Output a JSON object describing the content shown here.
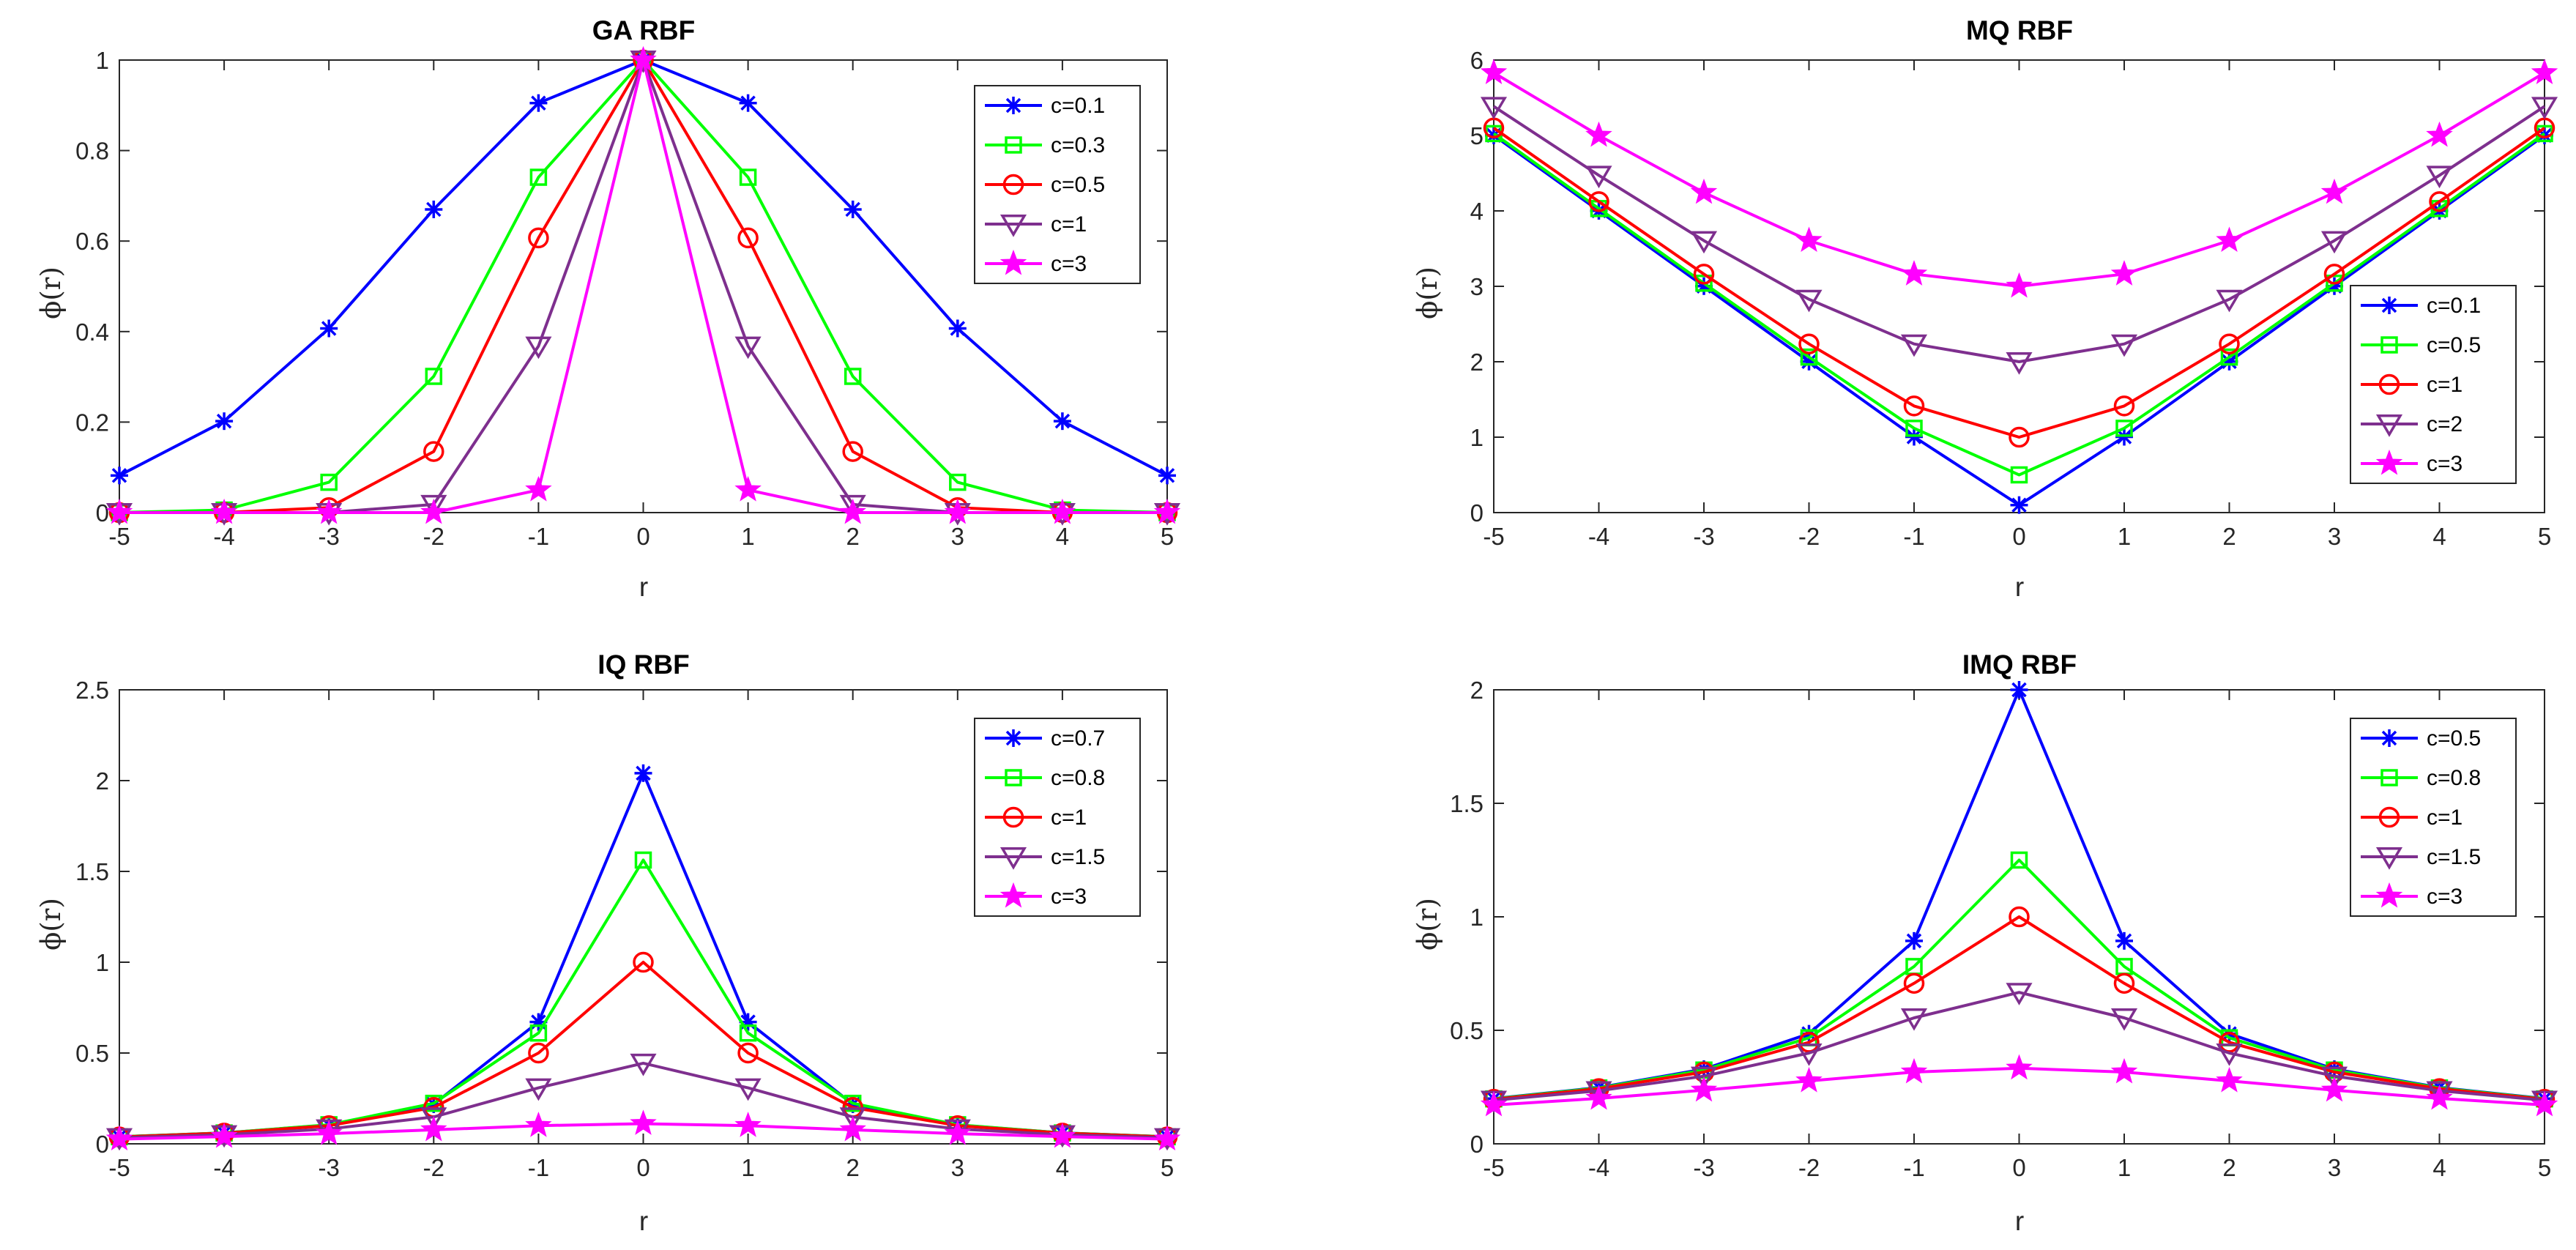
{
  "colors": {
    "blue": "#0000ff",
    "green": "#00ff00",
    "red": "#ff0000",
    "purple": "#7e2f8e",
    "magenta": "#ff00ff"
  },
  "chart_data": [
    {
      "id": "ga",
      "type": "line",
      "title": "GA RBF",
      "xlabel": "r",
      "ylabel": "ϕ(r)",
      "xlim": [
        -5,
        5
      ],
      "ylim": [
        0,
        1
      ],
      "xticks": [
        -5,
        -4,
        -3,
        -2,
        -1,
        0,
        1,
        2,
        3,
        4,
        5
      ],
      "xtick_labels": [
        "-5",
        "-4",
        "-3",
        "-2",
        "-1",
        "0",
        "1",
        "2",
        "3",
        "4",
        "5"
      ],
      "yticks": [
        0,
        0.2,
        0.4,
        0.6,
        0.8,
        1
      ],
      "ytick_labels": [
        "0",
        "0.2",
        "0.4",
        "0.6",
        "0.8",
        "1"
      ],
      "legend_position": "top-right",
      "x": [
        -5,
        -4,
        -3,
        -2,
        -1,
        0,
        1,
        2,
        3,
        4,
        5
      ],
      "series": [
        {
          "name": "c=0.1",
          "color": "blue",
          "marker": "asterisk",
          "values": [
            0.082,
            0.202,
            0.407,
            0.67,
            0.905,
            1,
            0.905,
            0.67,
            0.407,
            0.202,
            0.082
          ]
        },
        {
          "name": "c=0.3",
          "color": "green",
          "marker": "square",
          "values": [
            0.0001,
            0.0056,
            0.067,
            0.301,
            0.741,
            1,
            0.741,
            0.301,
            0.067,
            0.0056,
            0.0001
          ]
        },
        {
          "name": "c=0.5",
          "color": "red",
          "marker": "circle",
          "values": [
            0,
            0.0002,
            0.011,
            0.135,
            0.607,
            1,
            0.607,
            0.135,
            0.011,
            0.0002,
            0
          ]
        },
        {
          "name": "c=1",
          "color": "purple",
          "marker": "triangle-down",
          "values": [
            0,
            0,
            0.0001,
            0.018,
            0.368,
            1,
            0.368,
            0.018,
            0.0001,
            0,
            0
          ]
        },
        {
          "name": "c=3",
          "color": "magenta",
          "marker": "pentagram",
          "values": [
            0,
            0,
            0,
            0,
            0.05,
            1,
            0.05,
            0,
            0,
            0,
            0
          ]
        }
      ]
    },
    {
      "id": "mq",
      "type": "line",
      "title": "MQ RBF",
      "xlabel": "r",
      "ylabel": "ϕ(r)",
      "xlim": [
        -5,
        5
      ],
      "ylim": [
        0,
        6
      ],
      "xticks": [
        -5,
        -4,
        -3,
        -2,
        -1,
        0,
        1,
        2,
        3,
        4,
        5
      ],
      "xtick_labels": [
        "-5",
        "-4",
        "-3",
        "-2",
        "-1",
        "0",
        "1",
        "2",
        "3",
        "4",
        "5"
      ],
      "yticks": [
        0,
        1,
        2,
        3,
        4,
        5,
        6
      ],
      "ytick_labels": [
        "0",
        "1",
        "2",
        "3",
        "4",
        "5",
        "6"
      ],
      "legend_position": "right",
      "x": [
        -5,
        -4,
        -3,
        -2,
        -1,
        0,
        1,
        2,
        3,
        4,
        5
      ],
      "series": [
        {
          "name": "c=0.1",
          "color": "blue",
          "marker": "asterisk",
          "values": [
            5.001,
            4.001,
            3.002,
            2.002,
            1.005,
            0.1,
            1.005,
            2.002,
            3.002,
            4.001,
            5.001
          ]
        },
        {
          "name": "c=0.5",
          "color": "green",
          "marker": "square",
          "values": [
            5.025,
            4.031,
            3.041,
            2.062,
            1.118,
            0.5,
            1.118,
            2.062,
            3.041,
            4.031,
            5.025
          ]
        },
        {
          "name": "c=1",
          "color": "red",
          "marker": "circle",
          "values": [
            5.099,
            4.123,
            3.162,
            2.236,
            1.414,
            1,
            1.414,
            2.236,
            3.162,
            4.123,
            5.099
          ]
        },
        {
          "name": "c=2",
          "color": "purple",
          "marker": "triangle-down",
          "values": [
            5.385,
            4.472,
            3.606,
            2.828,
            2.236,
            2,
            2.236,
            2.828,
            3.606,
            4.472,
            5.385
          ]
        },
        {
          "name": "c=3",
          "color": "magenta",
          "marker": "pentagram",
          "values": [
            5.831,
            5.0,
            4.243,
            3.606,
            3.162,
            3,
            3.162,
            3.606,
            4.243,
            5.0,
            5.831
          ]
        }
      ]
    },
    {
      "id": "iq",
      "type": "line",
      "title": "IQ RBF",
      "xlabel": "r",
      "ylabel": "ϕ(r)",
      "xlim": [
        -5,
        5
      ],
      "ylim": [
        0,
        2.5
      ],
      "xticks": [
        -5,
        -4,
        -3,
        -2,
        -1,
        0,
        1,
        2,
        3,
        4,
        5
      ],
      "xtick_labels": [
        "-5",
        "-4",
        "-3",
        "-2",
        "-1",
        "0",
        "1",
        "2",
        "3",
        "4",
        "5"
      ],
      "yticks": [
        0,
        0.5,
        1,
        1.5,
        2,
        2.5
      ],
      "ytick_labels": [
        "0",
        "0.5",
        "1",
        "1.5",
        "2",
        "2.5"
      ],
      "legend_position": "top-right",
      "x": [
        -5,
        -4,
        -3,
        -2,
        -1,
        0,
        1,
        2,
        3,
        4,
        5
      ],
      "series": [
        {
          "name": "c=0.7",
          "color": "blue",
          "marker": "asterisk",
          "values": [
            0.039,
            0.06,
            0.104,
            0.218,
            0.671,
            2.041,
            0.671,
            0.218,
            0.104,
            0.06,
            0.039
          ]
        },
        {
          "name": "c=0.8",
          "color": "green",
          "marker": "square",
          "values": [
            0.039,
            0.06,
            0.105,
            0.223,
            0.61,
            1.5625,
            0.61,
            0.223,
            0.105,
            0.06,
            0.039
          ]
        },
        {
          "name": "c=1",
          "color": "red",
          "marker": "circle",
          "values": [
            0.038,
            0.059,
            0.1,
            0.2,
            0.5,
            1,
            0.5,
            0.2,
            0.1,
            0.059,
            0.038
          ]
        },
        {
          "name": "c=1.5",
          "color": "purple",
          "marker": "triangle-down",
          "values": [
            0.034,
            0.05,
            0.082,
            0.148,
            0.308,
            0.444,
            0.308,
            0.148,
            0.082,
            0.05,
            0.034
          ]
        },
        {
          "name": "c=3",
          "color": "magenta",
          "marker": "pentagram",
          "values": [
            0.026,
            0.04,
            0.056,
            0.077,
            0.1,
            0.111,
            0.1,
            0.077,
            0.056,
            0.04,
            0.026
          ]
        }
      ]
    },
    {
      "id": "imq",
      "type": "line",
      "title": "IMQ RBF",
      "xlabel": "r",
      "ylabel": "ϕ(r)",
      "xlim": [
        -5,
        5
      ],
      "ylim": [
        0,
        2
      ],
      "xticks": [
        -5,
        -4,
        -3,
        -2,
        -1,
        0,
        1,
        2,
        3,
        4,
        5
      ],
      "xtick_labels": [
        "-5",
        "-4",
        "-3",
        "-2",
        "-1",
        "0",
        "1",
        "2",
        "3",
        "4",
        "5"
      ],
      "yticks": [
        0,
        0.5,
        1,
        1.5,
        2
      ],
      "ytick_labels": [
        "0",
        "0.5",
        "1",
        "1.5",
        "2"
      ],
      "legend_position": "top-right",
      "x": [
        -5,
        -4,
        -3,
        -2,
        -1,
        0,
        1,
        2,
        3,
        4,
        5
      ],
      "series": [
        {
          "name": "c=0.5",
          "color": "blue",
          "marker": "asterisk",
          "values": [
            0.199,
            0.248,
            0.329,
            0.485,
            0.894,
            2,
            0.894,
            0.485,
            0.329,
            0.248,
            0.199
          ]
        },
        {
          "name": "c=0.8",
          "color": "green",
          "marker": "square",
          "values": [
            0.198,
            0.246,
            0.325,
            0.467,
            0.781,
            1.25,
            0.781,
            0.467,
            0.325,
            0.246,
            0.198
          ]
        },
        {
          "name": "c=1",
          "color": "red",
          "marker": "circle",
          "values": [
            0.196,
            0.243,
            0.316,
            0.447,
            0.707,
            1,
            0.707,
            0.447,
            0.316,
            0.243,
            0.196
          ]
        },
        {
          "name": "c=1.5",
          "color": "purple",
          "marker": "triangle-down",
          "values": [
            0.192,
            0.234,
            0.298,
            0.4,
            0.555,
            0.667,
            0.555,
            0.4,
            0.298,
            0.234,
            0.192
          ]
        },
        {
          "name": "c=3",
          "color": "magenta",
          "marker": "pentagram",
          "values": [
            0.171,
            0.2,
            0.236,
            0.277,
            0.316,
            0.333,
            0.316,
            0.277,
            0.236,
            0.2,
            0.171
          ]
        }
      ]
    }
  ]
}
